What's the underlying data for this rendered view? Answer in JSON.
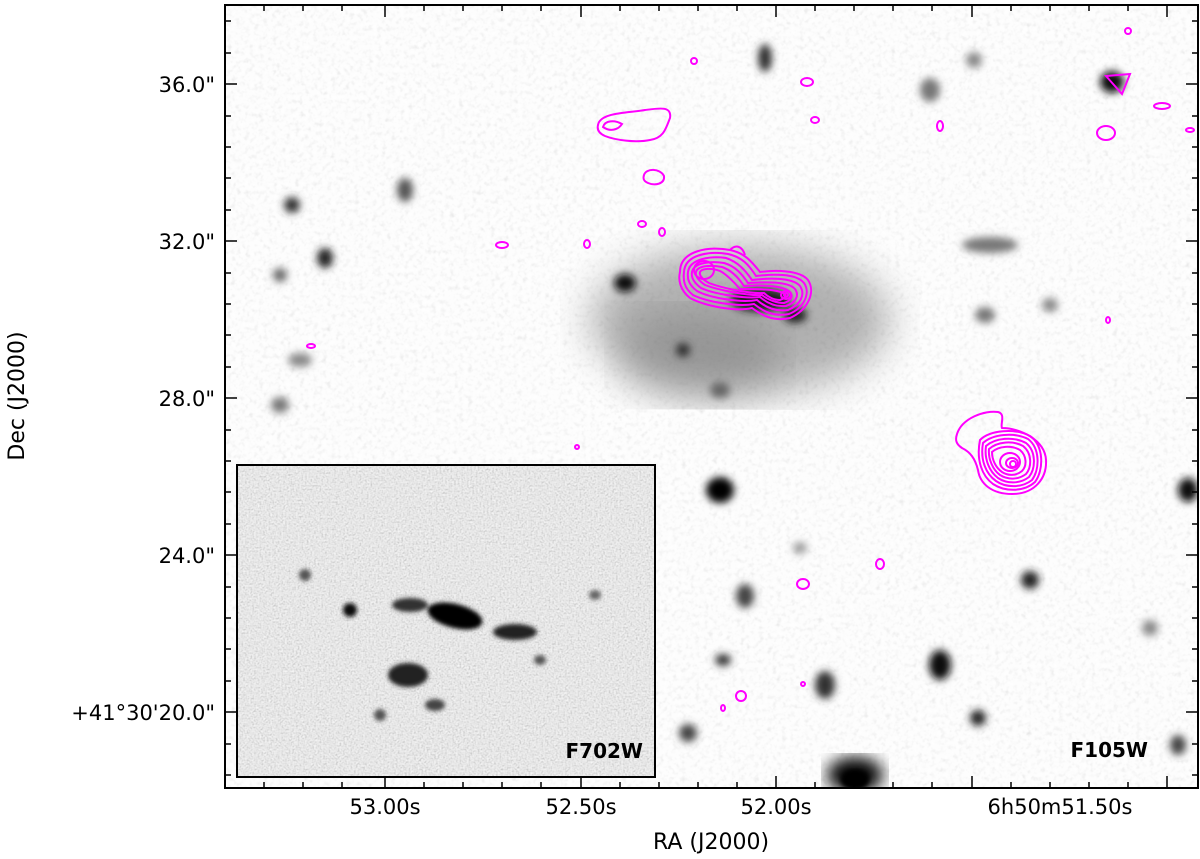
{
  "figure": {
    "x_axis_label": "RA (J2000)",
    "y_axis_label": "Dec (J2000)",
    "x_tick_labels": [
      "53.00s",
      "52.50s",
      "52.00s",
      "6h50m51.50s"
    ],
    "y_tick_labels": [
      "36.0\"",
      "32.0\"",
      "28.0\"",
      "24.0\"",
      "+41°30'20.0\""
    ],
    "main_filter_label": "F105W",
    "inset_filter_label": "F702W",
    "contour_color": "#ff00ff",
    "colormap": "grayscale"
  }
}
